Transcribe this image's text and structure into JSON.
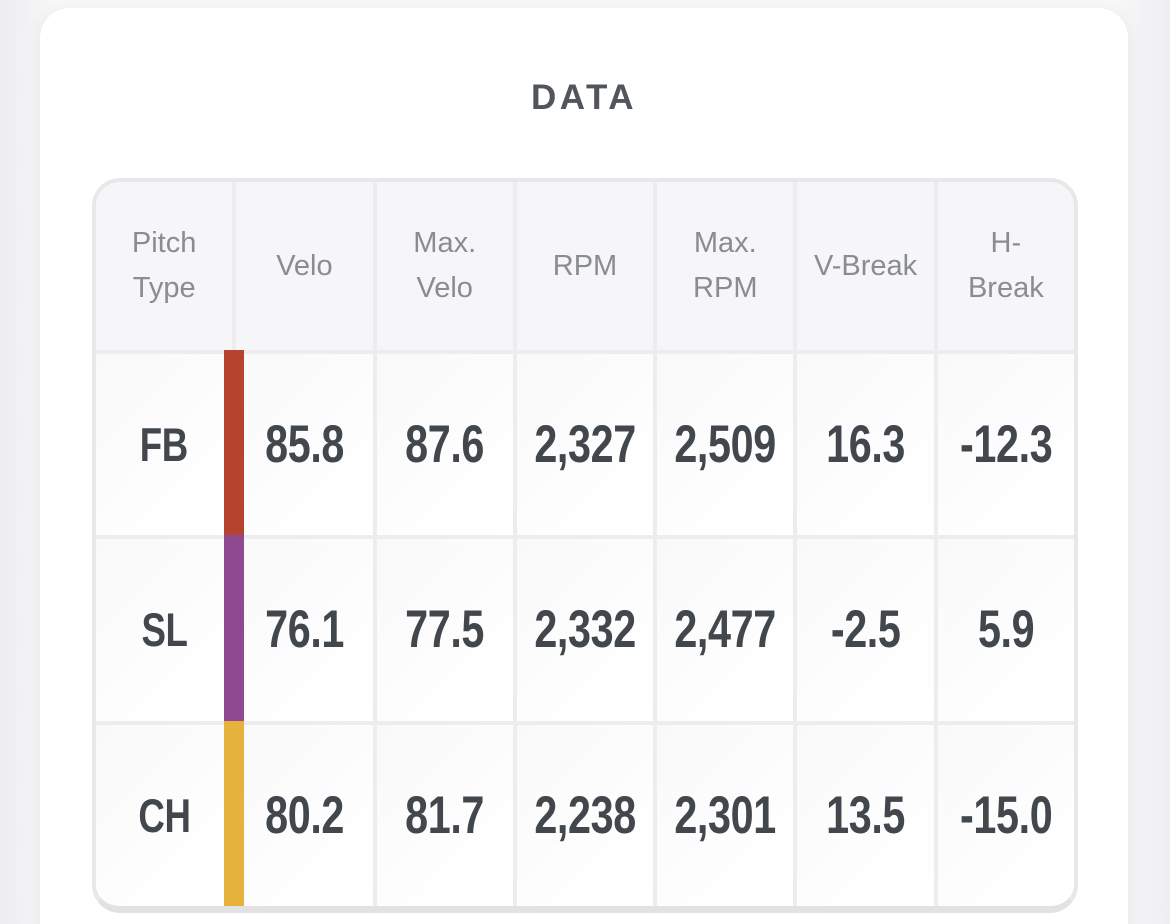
{
  "page": {
    "title": "DATA"
  },
  "table": {
    "columns": [
      "Pitch Type",
      "Velo",
      "Max. Velo",
      "RPM",
      "Max. RPM",
      "V-Break",
      "H-Break"
    ],
    "value_keys": [
      "velo",
      "max_velo",
      "rpm",
      "max_rpm",
      "v_break",
      "h_break"
    ],
    "rows": [
      {
        "pitch_type": "FB",
        "color": "#b5432e",
        "velo": "85.8",
        "max_velo": "87.6",
        "rpm": "2,327",
        "max_rpm": "2,509",
        "v_break": "16.3",
        "h_break": "-12.3"
      },
      {
        "pitch_type": "SL",
        "color": "#8d4a90",
        "velo": "76.1",
        "max_velo": "77.5",
        "rpm": "2,332",
        "max_rpm": "2,477",
        "v_break": "-2.5",
        "h_break": "5.9"
      },
      {
        "pitch_type": "CH",
        "color": "#e6b23e",
        "velo": "80.2",
        "max_velo": "81.7",
        "rpm": "2,238",
        "max_rpm": "2,301",
        "v_break": "13.5",
        "h_break": "-15.0"
      }
    ]
  },
  "colors": {
    "page_background": "#f8f8f9",
    "card_background": "#ffffff",
    "table_border": "#e8e8ea",
    "header_background": "#f6f6f8",
    "header_text": "#898c90",
    "value_text": "#42474d",
    "title_text": "#51565c",
    "bar_fb": "#b5432e",
    "bar_sl": "#8d4a90",
    "bar_ch": "#e6b23e"
  }
}
